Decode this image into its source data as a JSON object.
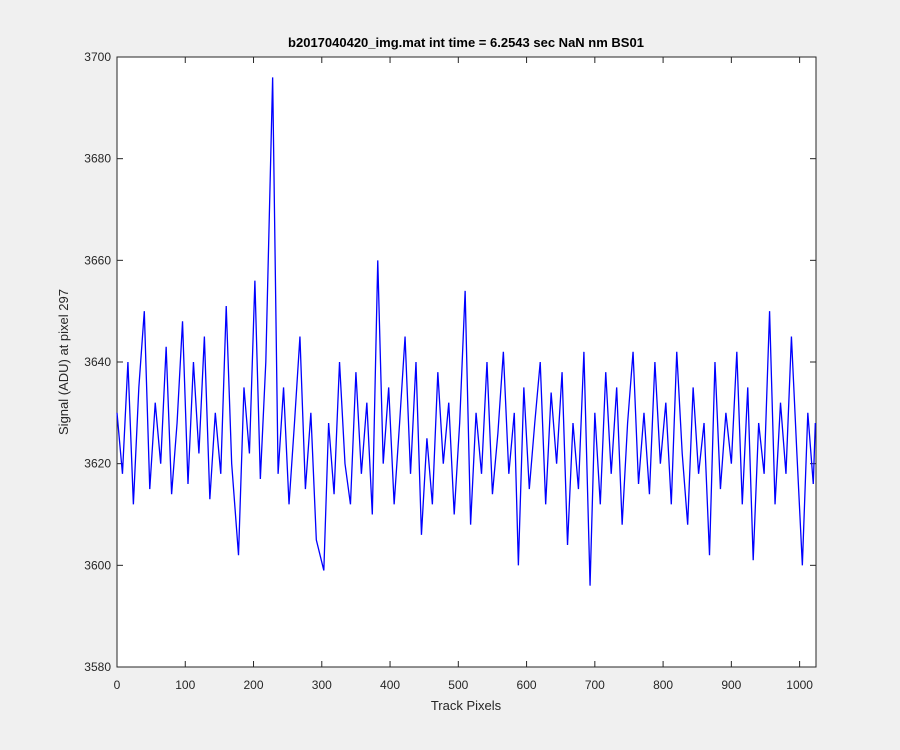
{
  "chart_data": {
    "type": "line",
    "title": "b2017040420_img.mat int time = 6.2543 sec  NaN nm BS01",
    "x_label": "Track Pixels",
    "y_label": "Signal (ADU) at pixel 297",
    "xlim": [
      0,
      1024
    ],
    "ylim": [
      3580,
      3700
    ],
    "xticks": [
      0,
      100,
      200,
      300,
      400,
      500,
      600,
      700,
      800,
      900,
      1000
    ],
    "yticks": [
      3580,
      3600,
      3620,
      3640,
      3660,
      3680,
      3700
    ],
    "grid": false,
    "series": [
      {
        "color": "#0000ff",
        "x": [
          0,
          8,
          16,
          24,
          32,
          40,
          48,
          56,
          64,
          72,
          80,
          88,
          96,
          104,
          112,
          120,
          128,
          136,
          144,
          152,
          160,
          168,
          178,
          186,
          194,
          202,
          210,
          218,
          228,
          236,
          244,
          252,
          260,
          268,
          276,
          284,
          292,
          303,
          310,
          318,
          326,
          334,
          342,
          350,
          358,
          366,
          374,
          382,
          390,
          398,
          406,
          414,
          422,
          430,
          438,
          446,
          454,
          462,
          470,
          478,
          486,
          494,
          502,
          510,
          518,
          526,
          534,
          542,
          550,
          558,
          566,
          574,
          582,
          588,
          596,
          604,
          612,
          620,
          628,
          636,
          644,
          652,
          660,
          668,
          676,
          684,
          693,
          700,
          708,
          716,
          724,
          732,
          740,
          748,
          756,
          764,
          772,
          780,
          788,
          796,
          804,
          812,
          820,
          828,
          836,
          844,
          852,
          860,
          868,
          876,
          884,
          892,
          900,
          908,
          916,
          924,
          932,
          940,
          948,
          956,
          964,
          972,
          980,
          988,
          996,
          1004,
          1012,
          1020,
          1023
        ],
        "values": [
          3630,
          3618,
          3640,
          3612,
          3635,
          3650,
          3615,
          3632,
          3620,
          3643,
          3614,
          3628,
          3648,
          3616,
          3640,
          3622,
          3645,
          3613,
          3630,
          3618,
          3651,
          3620,
          3602,
          3635,
          3622,
          3656,
          3617,
          3640,
          3696,
          3618,
          3635,
          3612,
          3628,
          3645,
          3615,
          3630,
          3605,
          3599,
          3628,
          3614,
          3640,
          3620,
          3612,
          3638,
          3618,
          3632,
          3610,
          3660,
          3620,
          3635,
          3612,
          3628,
          3645,
          3618,
          3640,
          3606,
          3625,
          3612,
          3638,
          3620,
          3632,
          3610,
          3628,
          3654,
          3608,
          3630,
          3618,
          3640,
          3614,
          3626,
          3642,
          3618,
          3630,
          3600,
          3635,
          3615,
          3628,
          3640,
          3612,
          3634,
          3620,
          3638,
          3604,
          3628,
          3615,
          3642,
          3596,
          3630,
          3612,
          3638,
          3618,
          3635,
          3608,
          3628,
          3642,
          3616,
          3630,
          3614,
          3640,
          3620,
          3632,
          3612,
          3642,
          3622,
          3608,
          3635,
          3618,
          3628,
          3602,
          3640,
          3615,
          3630,
          3620,
          3642,
          3612,
          3635,
          3601,
          3628,
          3618,
          3650,
          3612,
          3632,
          3618,
          3645,
          3622,
          3600,
          3630,
          3616,
          3628
        ]
      }
    ]
  }
}
